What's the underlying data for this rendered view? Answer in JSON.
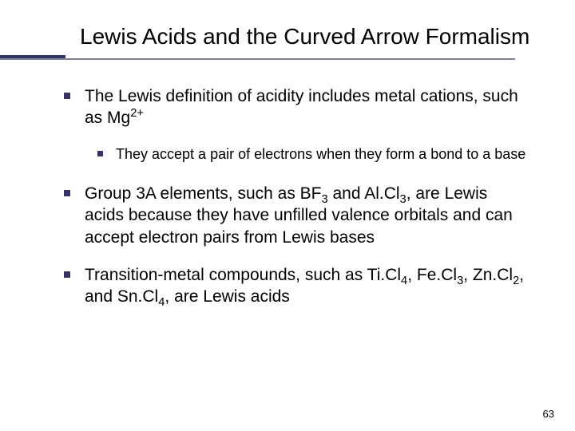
{
  "title": "Lewis Acids and the Curved Arrow Formalism",
  "bullets": {
    "b1_pre": "The Lewis definition of acidity includes metal cations, such as Mg",
    "b1_sup": "2+",
    "b1_sub_a": "They accept a pair of electrons when they form a bond to a base",
    "b2_a": "Group 3A elements, such as BF",
    "b2_b": " and Al.Cl",
    "b2_c": ", are Lewis acids because they have unfilled valence orbitals and can accept electron pairs from Lewis bases",
    "b3_a": "Transition-metal compounds, such as Ti.Cl",
    "b3_b": ", Fe.Cl",
    "b3_c": ", Zn.Cl",
    "b3_d": ", and Sn.Cl",
    "b3_e": ", are Lewis acids",
    "s3": "3",
    "s4": "4",
    "s2": "2"
  },
  "colors": {
    "bullet_square": "#333366",
    "underline_long": "#808099",
    "underline_short": "#333366",
    "background": "#ffffff",
    "text": "#000000"
  },
  "typography": {
    "title_fontsize": 28,
    "body_l1_fontsize": 21,
    "body_l2_fontsize": 18,
    "pagenum_fontsize": 13,
    "font_family": "Verdana"
  },
  "page_number": "63"
}
